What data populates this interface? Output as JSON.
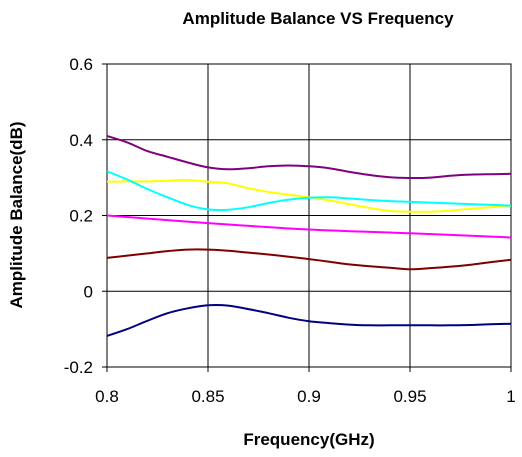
{
  "chart_data": {
    "type": "line",
    "title": "Amplitude Balance VS Frequency",
    "xlabel": "Frequency(GHz)",
    "ylabel": "Amplitude Balance(dB)",
    "xlim": [
      0.8,
      1.0
    ],
    "ylim": [
      -0.2,
      0.6
    ],
    "x_ticks": [
      "0.8",
      "0.85",
      "0.9",
      "0.95",
      "1"
    ],
    "y_ticks": [
      "-0.2",
      "0",
      "0.2",
      "0.4",
      "0.6"
    ],
    "grid": true,
    "legend": "none",
    "series": [
      {
        "color": "#800080",
        "points": [
          [
            0.8,
            0.41
          ],
          [
            0.81,
            0.393
          ],
          [
            0.82,
            0.37
          ],
          [
            0.83,
            0.355
          ],
          [
            0.84,
            0.34
          ],
          [
            0.85,
            0.327
          ],
          [
            0.86,
            0.322
          ],
          [
            0.87,
            0.325
          ],
          [
            0.88,
            0.33
          ],
          [
            0.89,
            0.332
          ],
          [
            0.9,
            0.33
          ],
          [
            0.91,
            0.325
          ],
          [
            0.92,
            0.315
          ],
          [
            0.93,
            0.307
          ],
          [
            0.94,
            0.301
          ],
          [
            0.95,
            0.299
          ],
          [
            0.96,
            0.3
          ],
          [
            0.97,
            0.305
          ],
          [
            0.98,
            0.308
          ],
          [
            0.99,
            0.309
          ],
          [
            1.0,
            0.31
          ]
        ]
      },
      {
        "color": "#FFFF00",
        "points": [
          [
            0.8,
            0.289
          ],
          [
            0.81,
            0.29
          ],
          [
            0.82,
            0.29
          ],
          [
            0.83,
            0.292
          ],
          [
            0.84,
            0.294
          ],
          [
            0.85,
            0.289
          ],
          [
            0.86,
            0.285
          ],
          [
            0.87,
            0.272
          ],
          [
            0.88,
            0.262
          ],
          [
            0.89,
            0.255
          ],
          [
            0.9,
            0.248
          ],
          [
            0.91,
            0.24
          ],
          [
            0.92,
            0.23
          ],
          [
            0.93,
            0.22
          ],
          [
            0.94,
            0.212
          ],
          [
            0.95,
            0.21
          ],
          [
            0.96,
            0.21
          ],
          [
            0.97,
            0.213
          ],
          [
            0.98,
            0.218
          ],
          [
            0.99,
            0.222
          ],
          [
            1.0,
            0.225
          ]
        ]
      },
      {
        "color": "#00FFFF",
        "points": [
          [
            0.8,
            0.317
          ],
          [
            0.81,
            0.295
          ],
          [
            0.82,
            0.27
          ],
          [
            0.83,
            0.248
          ],
          [
            0.84,
            0.228
          ],
          [
            0.85,
            0.216
          ],
          [
            0.86,
            0.215
          ],
          [
            0.87,
            0.222
          ],
          [
            0.88,
            0.233
          ],
          [
            0.89,
            0.242
          ],
          [
            0.9,
            0.247
          ],
          [
            0.91,
            0.248
          ],
          [
            0.92,
            0.245
          ],
          [
            0.93,
            0.241
          ],
          [
            0.94,
            0.238
          ],
          [
            0.95,
            0.236
          ],
          [
            0.96,
            0.234
          ],
          [
            0.97,
            0.232
          ],
          [
            0.98,
            0.23
          ],
          [
            0.99,
            0.228
          ],
          [
            1.0,
            0.226
          ]
        ]
      },
      {
        "color": "#FF00FF",
        "points": [
          [
            0.8,
            0.2
          ],
          [
            0.85,
            0.18
          ],
          [
            0.9,
            0.163
          ],
          [
            0.95,
            0.153
          ],
          [
            1.0,
            0.142
          ]
        ]
      },
      {
        "color": "#800000",
        "points": [
          [
            0.8,
            0.088
          ],
          [
            0.81,
            0.094
          ],
          [
            0.82,
            0.1
          ],
          [
            0.83,
            0.106
          ],
          [
            0.84,
            0.11
          ],
          [
            0.85,
            0.11
          ],
          [
            0.86,
            0.107
          ],
          [
            0.87,
            0.102
          ],
          [
            0.88,
            0.097
          ],
          [
            0.89,
            0.091
          ],
          [
            0.9,
            0.085
          ],
          [
            0.91,
            0.078
          ],
          [
            0.92,
            0.071
          ],
          [
            0.93,
            0.066
          ],
          [
            0.94,
            0.062
          ],
          [
            0.95,
            0.058
          ],
          [
            0.96,
            0.061
          ],
          [
            0.97,
            0.065
          ],
          [
            0.98,
            0.07
          ],
          [
            0.99,
            0.077
          ],
          [
            1.0,
            0.083
          ]
        ]
      },
      {
        "color": "#000080",
        "points": [
          [
            0.8,
            -0.118
          ],
          [
            0.81,
            -0.1
          ],
          [
            0.82,
            -0.078
          ],
          [
            0.83,
            -0.058
          ],
          [
            0.84,
            -0.045
          ],
          [
            0.85,
            -0.037
          ],
          [
            0.86,
            -0.038
          ],
          [
            0.87,
            -0.047
          ],
          [
            0.88,
            -0.058
          ],
          [
            0.89,
            -0.07
          ],
          [
            0.9,
            -0.079
          ],
          [
            0.91,
            -0.084
          ],
          [
            0.92,
            -0.088
          ],
          [
            0.93,
            -0.09
          ],
          [
            0.94,
            -0.09
          ],
          [
            0.95,
            -0.09
          ],
          [
            0.96,
            -0.09
          ],
          [
            0.97,
            -0.09
          ],
          [
            0.98,
            -0.089
          ],
          [
            0.99,
            -0.087
          ],
          [
            1.0,
            -0.086
          ]
        ]
      }
    ]
  }
}
